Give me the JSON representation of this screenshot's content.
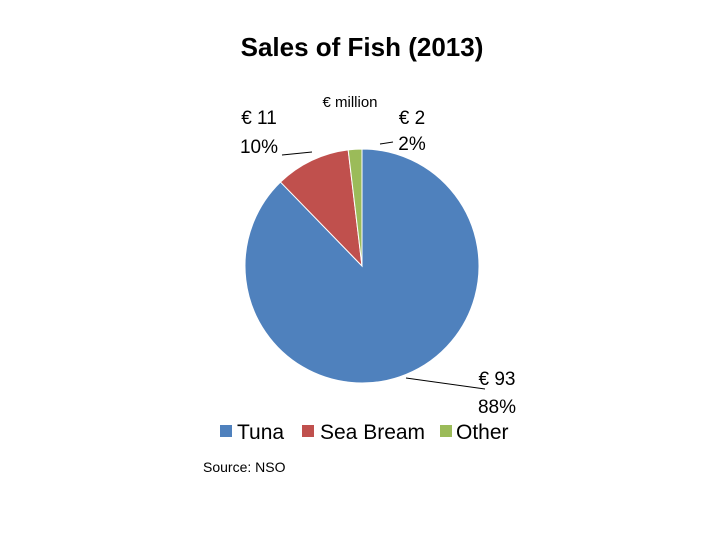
{
  "chart_data": {
    "type": "pie",
    "title": "Sales of Fish (2013)",
    "unit_label": "€ million",
    "source": "Source: NSO",
    "legend_position": "bottom",
    "slices": [
      {
        "name": "Tuna",
        "value": 93,
        "value_label": "€ 93",
        "percent_label": "88%",
        "color": "#4f81bd"
      },
      {
        "name": "Sea Bream",
        "value": 11,
        "value_label": "€ 11",
        "percent_label": "10%",
        "color": "#c0504d"
      },
      {
        "name": "Other",
        "value": 2,
        "value_label": "€ 2",
        "percent_label": "2%",
        "color": "#9bbb59"
      }
    ]
  }
}
